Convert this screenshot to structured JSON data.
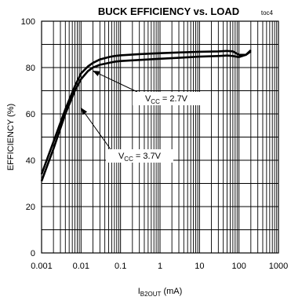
{
  "chart_data": {
    "type": "line",
    "title": "BUCK EFFICIENCY vs. LOAD",
    "figure_tag": "toc4",
    "x_scale": "log",
    "xlim": [
      0.001,
      1000
    ],
    "ylim": [
      0,
      100
    ],
    "x_ticks": [
      "0.001",
      "0.01",
      "0.1",
      "1",
      "10",
      "100",
      "1000"
    ],
    "y_ticks": [
      "0",
      "20",
      "40",
      "60",
      "80",
      "100"
    ],
    "xlabel": {
      "main": "I",
      "sub": "B2OUT",
      "unit": " (mA)"
    },
    "ylabel": "EFFICIENCY (%)",
    "grid": true,
    "series": [
      {
        "name": "VCC = 2.7V",
        "label_main": "V",
        "label_sub": "CC",
        "label_rest": " = 2.7V",
        "x": [
          0.001,
          0.002,
          0.004,
          0.007,
          0.01,
          0.015,
          0.02,
          0.03,
          0.05,
          0.07,
          0.1,
          0.3,
          1,
          3,
          10,
          30,
          50,
          70,
          100,
          150,
          200
        ],
        "y": [
          34,
          48,
          62,
          72,
          77.5,
          80.5,
          82,
          83.5,
          84.5,
          85,
          85.3,
          85.8,
          86.2,
          86.5,
          86.8,
          87,
          87.2,
          87,
          85.5,
          85.5,
          87
        ]
      },
      {
        "name": "VCC = 3.7V",
        "label_main": "V",
        "label_sub": "CC",
        "label_rest": " = 3.7V",
        "x": [
          0.001,
          0.002,
          0.004,
          0.007,
          0.01,
          0.015,
          0.02,
          0.03,
          0.05,
          0.07,
          0.1,
          0.3,
          1,
          3,
          10,
          30,
          50,
          70,
          100,
          150,
          200
        ],
        "y": [
          31,
          45,
          60,
          70,
          75,
          78.5,
          80,
          81.2,
          82,
          82.5,
          82.8,
          83.3,
          83.8,
          84.2,
          84.7,
          85,
          85.2,
          85,
          84.5,
          85.5,
          87.5
        ]
      }
    ]
  }
}
